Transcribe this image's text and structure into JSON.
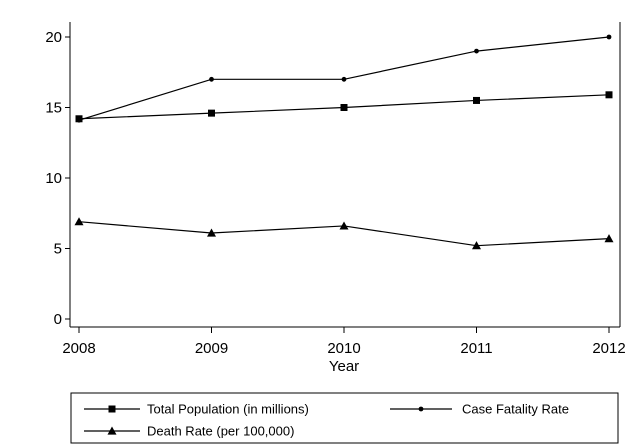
{
  "chart_data": {
    "type": "line",
    "x": [
      2008,
      2009,
      2010,
      2011,
      2012
    ],
    "xlabel": "Year",
    "ylabel": "",
    "xlim": [
      2008,
      2012
    ],
    "ylim": [
      0,
      20
    ],
    "x_ticks": [
      "2008",
      "2009",
      "2010",
      "2011",
      "2012"
    ],
    "y_ticks": [
      "0",
      "5",
      "10",
      "15",
      "20"
    ],
    "grid": false,
    "legend_position": "bottom",
    "series": [
      {
        "name": "Total Population (in millions)",
        "marker": "square",
        "values": [
          14.2,
          14.6,
          15.0,
          15.5,
          15.9
        ]
      },
      {
        "name": "Case Fatality Rate",
        "marker": "dot",
        "values": [
          14.1,
          17.0,
          17.0,
          19.0,
          20.0
        ]
      },
      {
        "name": "Death Rate (per 100,000)",
        "marker": "triangle",
        "values": [
          6.9,
          6.1,
          6.6,
          5.2,
          5.7
        ]
      }
    ],
    "colors": {
      "line": "#000000",
      "frame": "#000000",
      "background": "#ffffff"
    }
  }
}
